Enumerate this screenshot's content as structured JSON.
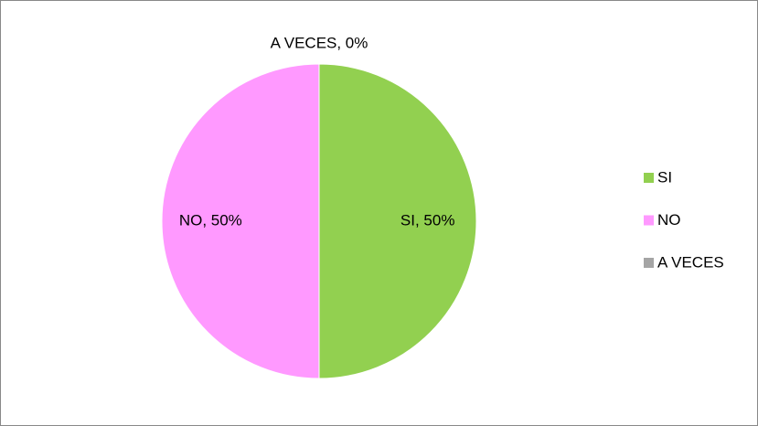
{
  "chart_data": {
    "type": "pie",
    "categories": [
      "SI",
      "NO",
      "A VECES"
    ],
    "values": [
      50,
      50,
      0
    ],
    "value_labels": [
      "SI, 50%",
      "NO, 50%",
      "A VECES, 0%"
    ],
    "colors": [
      "#92d050",
      "#ff99ff",
      "#a5a5a5"
    ],
    "legend": "right"
  }
}
